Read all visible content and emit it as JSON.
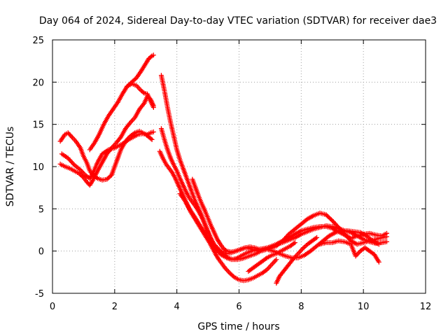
{
  "chart_data": {
    "type": "scatter",
    "title": "Day 064 of 2024, Sidereal Day-to-day VTEC variation (SDTVAR) for receiver dae3",
    "xlabel": "GPS time / hours",
    "ylabel": "SDTVAR / TECUs",
    "xlim": [
      0,
      12
    ],
    "ylim": [
      -5,
      25
    ],
    "xticks": [
      0,
      2,
      4,
      6,
      8,
      10,
      12
    ],
    "yticks": [
      -5,
      0,
      5,
      10,
      15,
      20,
      25
    ],
    "grid": true,
    "marker": "+",
    "marker_color": "#ff0000",
    "series": [
      {
        "x": [
          0.25,
          0.4,
          0.5,
          0.6,
          0.75,
          0.9,
          1.0,
          1.1,
          1.2,
          1.3,
          1.45,
          1.6,
          1.75,
          1.9,
          2.05,
          2.2,
          2.35,
          2.5,
          2.65,
          2.8,
          2.9,
          3.0,
          3.1,
          3.2
        ],
        "y": [
          13.0,
          13.8,
          14.0,
          13.6,
          13.0,
          12.2,
          11.2,
          10.5,
          9.5,
          9.0,
          8.6,
          8.4,
          8.5,
          9.0,
          10.5,
          12.0,
          13.0,
          13.6,
          14.0,
          14.2,
          14.0,
          13.8,
          13.5,
          13.2
        ]
      },
      {
        "x": [
          0.25,
          0.4,
          0.55,
          0.7,
          0.85,
          1.0,
          1.1,
          1.2,
          1.3,
          1.45,
          1.6,
          1.75,
          1.9,
          2.05,
          2.2,
          2.35,
          2.5,
          2.65,
          2.8,
          2.95,
          3.05,
          3.15,
          3.25
        ],
        "y": [
          10.3,
          10.0,
          9.8,
          9.5,
          9.2,
          8.7,
          8.2,
          7.8,
          8.4,
          9.5,
          10.5,
          11.5,
          12.2,
          12.8,
          13.5,
          14.5,
          15.2,
          15.8,
          16.8,
          17.5,
          18.3,
          18.0,
          17.2
        ]
      },
      {
        "x": [
          0.3,
          0.5,
          0.7,
          0.9,
          1.05,
          1.2,
          1.3,
          1.45,
          1.6,
          1.8,
          2.0,
          2.15,
          2.3,
          2.45,
          2.6,
          2.75,
          2.9,
          3.05,
          3.15,
          3.25
        ],
        "y": [
          11.5,
          11.0,
          10.2,
          9.6,
          9.0,
          8.6,
          9.2,
          10.5,
          11.5,
          12.0,
          12.2,
          12.5,
          12.8,
          13.2,
          13.5,
          13.8,
          13.9,
          13.8,
          14.0,
          14.1
        ]
      },
      {
        "x": [
          1.2,
          1.35,
          1.5,
          1.65,
          1.8,
          1.95,
          2.1,
          2.25,
          2.4,
          2.55,
          2.7,
          2.85,
          3.0,
          3.1,
          3.2,
          3.25
        ],
        "y": [
          12.0,
          12.8,
          13.8,
          15.0,
          16.0,
          16.8,
          17.6,
          18.6,
          19.5,
          20.0,
          20.5,
          21.3,
          22.2,
          22.8,
          23.1,
          23.2
        ]
      },
      {
        "x": [
          2.4,
          2.55,
          2.7,
          2.85,
          2.95,
          3.05,
          3.15,
          3.25
        ],
        "y": [
          19.5,
          19.8,
          19.6,
          19.0,
          18.7,
          18.6,
          17.8,
          17.0
        ]
      },
      {
        "x": [
          3.5,
          3.6,
          3.7,
          3.8,
          3.9,
          4.0,
          4.1,
          4.2,
          4.3,
          4.4,
          4.5,
          4.6,
          4.7,
          4.8,
          4.9,
          5.0,
          5.1,
          5.2,
          5.3,
          5.4,
          5.5,
          5.6,
          5.75,
          5.9,
          6.05,
          6.2,
          6.35,
          6.5,
          6.65,
          6.8,
          7.0,
          7.2,
          7.4,
          7.6,
          7.8,
          8.0,
          8.2,
          8.4,
          8.6,
          8.8,
          9.0,
          9.2,
          9.4,
          9.6,
          9.8,
          10.0,
          10.2,
          10.4,
          10.6,
          10.75
        ],
        "y": [
          20.8,
          19.0,
          17.0,
          15.2,
          13.6,
          12.0,
          10.8,
          9.8,
          8.8,
          7.8,
          6.8,
          5.8,
          5.0,
          4.2,
          3.2,
          2.2,
          1.3,
          0.6,
          0.2,
          0.0,
          -0.2,
          -0.3,
          -0.2,
          0.0,
          0.2,
          0.4,
          0.5,
          0.4,
          0.2,
          0.3,
          0.5,
          0.8,
          1.2,
          1.6,
          2.0,
          2.4,
          2.6,
          2.8,
          2.9,
          2.9,
          2.7,
          2.3,
          1.9,
          1.5,
          1.8,
          2.0,
          2.1,
          1.9,
          1.8,
          2.1
        ]
      },
      {
        "x": [
          3.5,
          3.6,
          3.7,
          3.8,
          3.9,
          4.0,
          4.1,
          4.2,
          4.3,
          4.4,
          4.5,
          4.6,
          4.7,
          4.8,
          4.9,
          5.0,
          5.1,
          5.2,
          5.3,
          5.4,
          5.5,
          5.65,
          5.8,
          5.95,
          6.1,
          6.25,
          6.4,
          6.55,
          6.7,
          6.9,
          7.1,
          7.3,
          7.5,
          7.7,
          7.9,
          8.1,
          8.3,
          8.5,
          8.7,
          8.9,
          9.1,
          9.3,
          9.5,
          9.7,
          9.9,
          10.1,
          10.3,
          10.5
        ],
        "y": [
          14.5,
          13.2,
          12.0,
          11.0,
          10.2,
          9.5,
          8.6,
          7.8,
          7.0,
          6.3,
          5.8,
          5.3,
          4.7,
          4.0,
          3.2,
          2.3,
          1.5,
          0.8,
          0.4,
          0.0,
          -0.4,
          -0.8,
          -1.0,
          -1.0,
          -0.9,
          -0.7,
          -0.5,
          -0.3,
          0.0,
          0.2,
          0.0,
          -0.3,
          -0.6,
          -0.8,
          -0.8,
          -0.5,
          0.0,
          0.6,
          1.2,
          1.8,
          2.2,
          2.4,
          2.4,
          2.3,
          2.2,
          1.8,
          1.2,
          0.8
        ]
      },
      {
        "x": [
          3.45,
          3.55,
          3.65,
          3.75,
          3.85,
          3.95,
          4.05,
          4.15,
          4.25,
          4.35,
          4.45,
          4.55,
          4.65,
          4.75,
          4.85,
          4.95,
          5.05,
          5.15,
          5.25,
          5.35,
          5.45,
          5.55,
          5.7,
          5.85,
          6.0,
          6.15,
          6.3,
          6.45,
          6.6,
          6.75,
          6.9,
          7.05,
          7.2
        ],
        "y": [
          11.8,
          11.0,
          10.3,
          9.8,
          9.3,
          8.6,
          7.8,
          7.0,
          6.2,
          5.4,
          4.6,
          4.0,
          3.4,
          2.8,
          2.2,
          1.6,
          1.0,
          0.3,
          -0.4,
          -1.0,
          -1.5,
          -2.0,
          -2.6,
          -3.1,
          -3.4,
          -3.5,
          -3.4,
          -3.2,
          -2.9,
          -2.6,
          -2.2,
          -1.6,
          -1.0
        ]
      },
      {
        "x": [
          4.1,
          4.25,
          4.4,
          4.55,
          4.7,
          4.85,
          5.0,
          5.15,
          5.3,
          5.45,
          5.6,
          5.75,
          5.9,
          6.05,
          6.2,
          6.4,
          6.6,
          6.8,
          7.0,
          7.2,
          7.4,
          7.6,
          7.8,
          8.0,
          8.2,
          8.4,
          8.6,
          8.8,
          9.0,
          9.2,
          9.4,
          9.6,
          9.8,
          10.0,
          10.2,
          10.4,
          10.6,
          10.75
        ],
        "y": [
          6.8,
          6.0,
          5.0,
          4.2,
          3.3,
          2.4,
          1.5,
          0.7,
          0.0,
          -0.5,
          -0.8,
          -1.0,
          -0.9,
          -0.6,
          -0.3,
          0.0,
          0.2,
          0.3,
          0.3,
          0.6,
          1.2,
          2.0,
          2.6,
          3.2,
          3.8,
          4.2,
          4.5,
          4.3,
          3.6,
          2.8,
          2.0,
          1.2,
          0.8,
          1.0,
          1.2,
          1.4,
          1.6,
          1.7
        ]
      },
      {
        "x": [
          4.5,
          4.6,
          4.7,
          4.8,
          4.9,
          5.0,
          5.1,
          5.2,
          5.3,
          5.4,
          5.5,
          5.6,
          5.75,
          5.9,
          6.05,
          6.2,
          6.35,
          6.5,
          6.65,
          6.8,
          7.0,
          7.2,
          7.4,
          7.6,
          7.8,
          8.0,
          8.2,
          8.4,
          8.6,
          8.8,
          9.0,
          9.2,
          9.4,
          9.6,
          9.8,
          10.0,
          10.2,
          10.4,
          10.6,
          10.75
        ],
        "y": [
          8.5,
          7.5,
          6.5,
          5.6,
          4.8,
          3.9,
          3.0,
          2.2,
          1.4,
          0.8,
          0.3,
          0.0,
          -0.1,
          0.0,
          0.2,
          0.4,
          0.3,
          0.1,
          0.0,
          0.2,
          0.5,
          0.8,
          1.0,
          1.3,
          1.6,
          2.0,
          2.3,
          2.6,
          2.8,
          3.0,
          2.9,
          2.7,
          2.4,
          2.2,
          1.8,
          1.4,
          1.1,
          0.9,
          1.0,
          1.1
        ]
      },
      {
        "x": [
          7.2,
          7.3,
          7.45,
          7.6,
          7.75,
          7.9,
          8.05,
          8.2,
          8.35,
          8.5
        ],
        "y": [
          -3.8,
          -3.0,
          -2.3,
          -1.6,
          -0.9,
          -0.3,
          0.3,
          0.8,
          1.2,
          1.6
        ]
      },
      {
        "x": [
          6.3,
          6.45,
          6.6,
          6.75,
          6.9,
          7.05,
          7.2,
          7.35,
          7.5,
          7.65,
          7.8
        ],
        "y": [
          -2.4,
          -2.0,
          -1.6,
          -1.2,
          -0.8,
          -0.5,
          -0.3,
          0.0,
          0.3,
          0.6,
          1.0
        ]
      },
      {
        "x": [
          8.6,
          8.8,
          9.0,
          9.2,
          9.4,
          9.6,
          9.75,
          9.9,
          10.05,
          10.2,
          10.35,
          10.5
        ],
        "y": [
          0.8,
          1.0,
          1.0,
          1.2,
          1.1,
          0.8,
          -0.6,
          0.0,
          0.4,
          0.0,
          -0.4,
          -1.3
        ]
      }
    ]
  }
}
